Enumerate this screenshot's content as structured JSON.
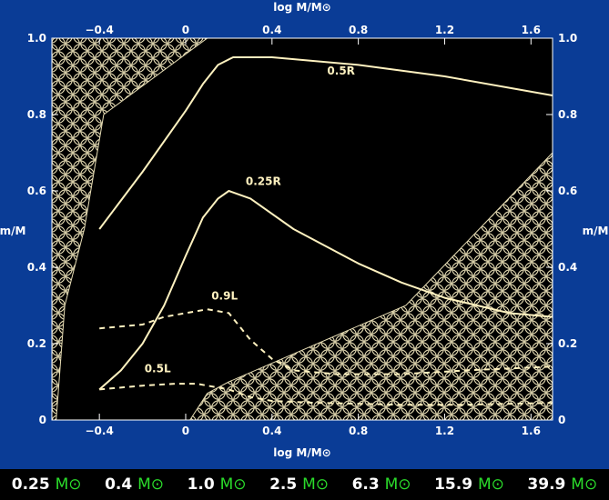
{
  "chart_data": {
    "type": "line",
    "xlabel": "log M/M⊙",
    "ylabel": "m/M",
    "xlim": [
      -0.62,
      1.7
    ],
    "ylim": [
      0,
      1.0
    ],
    "x_ticks": [
      "-0.4",
      "0",
      "0.4",
      "0.8",
      "1.2",
      "1.6"
    ],
    "y_ticks": [
      "0",
      "0.2",
      "0.4",
      "0.6",
      "0.8",
      "1.0"
    ],
    "series": [
      {
        "name": "0.5R",
        "style": "solid",
        "points": [
          [
            -0.4,
            0.5
          ],
          [
            -0.2,
            0.65
          ],
          [
            0,
            0.81
          ],
          [
            0.08,
            0.88
          ],
          [
            0.15,
            0.93
          ],
          [
            0.22,
            0.95
          ],
          [
            0.4,
            0.95
          ],
          [
            0.8,
            0.93
          ],
          [
            1.2,
            0.9
          ],
          [
            1.5,
            0.87
          ],
          [
            1.7,
            0.85
          ]
        ]
      },
      {
        "name": "0.25R",
        "style": "solid",
        "points": [
          [
            -0.4,
            0.08
          ],
          [
            -0.3,
            0.13
          ],
          [
            -0.2,
            0.2
          ],
          [
            -0.1,
            0.3
          ],
          [
            0,
            0.43
          ],
          [
            0.08,
            0.53
          ],
          [
            0.15,
            0.58
          ],
          [
            0.2,
            0.6
          ],
          [
            0.3,
            0.58
          ],
          [
            0.5,
            0.5
          ],
          [
            0.8,
            0.41
          ],
          [
            1.0,
            0.36
          ],
          [
            1.2,
            0.32
          ],
          [
            1.5,
            0.28
          ],
          [
            1.7,
            0.27
          ]
        ]
      },
      {
        "name": "0.9L",
        "style": "dashed",
        "points": [
          [
            -0.4,
            0.24
          ],
          [
            -0.2,
            0.25
          ],
          [
            -0.1,
            0.27
          ],
          [
            0.1,
            0.29
          ],
          [
            0.2,
            0.28
          ],
          [
            0.3,
            0.21
          ],
          [
            0.4,
            0.16
          ],
          [
            0.5,
            0.13
          ],
          [
            0.7,
            0.12
          ],
          [
            1.0,
            0.12
          ],
          [
            1.3,
            0.13
          ],
          [
            1.7,
            0.14
          ]
        ]
      },
      {
        "name": "0.5L",
        "style": "dashed",
        "points": [
          [
            -0.4,
            0.08
          ],
          [
            -0.2,
            0.09
          ],
          [
            -0.05,
            0.095
          ],
          [
            0.05,
            0.095
          ],
          [
            0.2,
            0.08
          ],
          [
            0.3,
            0.06
          ],
          [
            0.4,
            0.05
          ],
          [
            0.6,
            0.045
          ],
          [
            1.0,
            0.04
          ],
          [
            1.3,
            0.04
          ],
          [
            1.7,
            0.045
          ]
        ]
      }
    ],
    "convective_regions": [
      {
        "name": "outer-envelope",
        "points": [
          [
            -0.62,
            0
          ],
          [
            -0.62,
            1.0
          ],
          [
            0.1,
            1.0
          ],
          [
            -0.38,
            0.8
          ],
          [
            -0.47,
            0.5
          ],
          [
            -0.56,
            0.3
          ],
          [
            -0.6,
            0
          ]
        ]
      },
      {
        "name": "core",
        "points": [
          [
            0.02,
            0
          ],
          [
            1.7,
            0
          ],
          [
            1.7,
            0.7
          ],
          [
            1.02,
            0.3
          ],
          [
            0.2,
            0.1
          ],
          [
            0.1,
            0.07
          ]
        ]
      }
    ],
    "label_positions": [
      {
        "name": "0.5R",
        "x": 0.72,
        "y": 0.905
      },
      {
        "name": "0.25R",
        "x": 0.36,
        "y": 0.615
      },
      {
        "name": "0.9L",
        "x": 0.18,
        "y": 0.315
      },
      {
        "name": "0.5L",
        "x": -0.13,
        "y": 0.125
      }
    ]
  },
  "mass_bar": {
    "unit": "M⊙",
    "items": [
      "0.25",
      "0.4",
      "1.0",
      "2.5",
      "6.3",
      "15.9",
      "39.9"
    ]
  },
  "colors": {
    "background": "#0a3c96",
    "curve": "#fff2c0",
    "hatch": "#e6dcb4",
    "plot": "#000000",
    "unit": "#2bdc2b"
  }
}
